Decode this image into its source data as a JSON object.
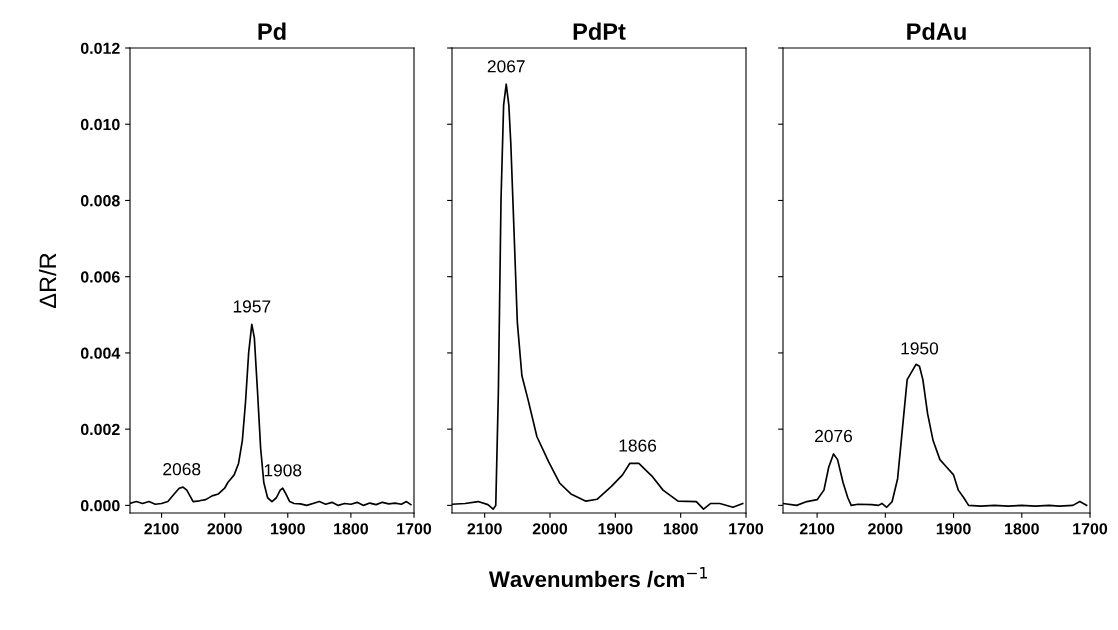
{
  "chart_data": [
    {
      "type": "line",
      "title": "Pd",
      "ylabel": "ΔR/R",
      "xlim": [
        2150,
        1700
      ],
      "xticks": [
        2100,
        2000,
        1900,
        1800,
        1700
      ],
      "ylim": [
        -0.0002,
        0.012
      ],
      "yticks": [
        {
          "value": 0,
          "label": "0.000"
        },
        {
          "value": 0.002,
          "label": "0.002"
        },
        {
          "value": 0.004,
          "label": "0.004"
        },
        {
          "value": 0.006,
          "label": "0.006"
        },
        {
          "value": 0.008,
          "label": "0.008"
        },
        {
          "value": 0.01,
          "label": "0.010"
        },
        {
          "value": 0.012,
          "label": "0.012"
        }
      ],
      "series": [
        {
          "color": "#000000",
          "x": [
            2150,
            2140,
            2130,
            2120,
            2110,
            2100,
            2090,
            2080,
            2072,
            2066,
            2060,
            2050,
            2040,
            2030,
            2020,
            2010,
            2000,
            1995,
            1990,
            1985,
            1978,
            1972,
            1967,
            1962,
            1957,
            1953,
            1948,
            1943,
            1938,
            1932,
            1925,
            1918,
            1912,
            1908,
            1903,
            1897,
            1890,
            1880,
            1870,
            1860,
            1850,
            1840,
            1830,
            1820,
            1810,
            1800,
            1790,
            1780,
            1770,
            1760,
            1750,
            1740,
            1730,
            1720,
            1712,
            1705
          ],
          "values": [
            5e-05,
            0.0001,
            5e-05,
            0.0001,
            3e-05,
            5e-05,
            0.0001,
            0.0003,
            0.00045,
            0.00048,
            0.0004,
            0.0001,
            0.00012,
            0.00015,
            0.00025,
            0.0003,
            0.00045,
            0.0006,
            0.0007,
            0.0008,
            0.0011,
            0.0017,
            0.0027,
            0.004,
            0.00475,
            0.0044,
            0.003,
            0.0015,
            0.0006,
            0.0002,
            0.0001,
            0.0002,
            0.0004,
            0.00045,
            0.0003,
            0.0001,
            5e-05,
            4e-05,
            0.0,
            5e-05,
            0.0001,
            3e-05,
            8e-05,
            0.0,
            5e-05,
            3e-05,
            8e-05,
            0.0,
            6e-05,
            2e-05,
            8e-05,
            4e-05,
            6e-05,
            3e-05,
            0.0001,
            2e-05
          ]
        }
      ],
      "annotations": [
        {
          "text": "2068",
          "x": 2068,
          "y": 0.00048
        },
        {
          "text": "1957",
          "x": 1957,
          "y": 0.00475
        },
        {
          "text": "1908",
          "x": 1908,
          "y": 0.00045
        }
      ]
    },
    {
      "type": "line",
      "title": "PdPt",
      "xlabel": "Wavenumbers /cm$^{−1}$",
      "xlim": [
        2150,
        1700
      ],
      "xticks": [
        2100,
        2000,
        1900,
        1800,
        1700
      ],
      "ylim": [
        -0.0002,
        0.012
      ],
      "yticks": [
        {
          "value": 0,
          "label": null
        },
        {
          "value": 0.002,
          "label": null
        },
        {
          "value": 0.004,
          "label": null
        },
        {
          "value": 0.006,
          "label": null
        },
        {
          "value": 0.008,
          "label": null
        },
        {
          "value": 0.01,
          "label": null
        },
        {
          "value": 0.012,
          "label": null
        }
      ],
      "tick_labels": "x",
      "series": [
        {
          "color": "#000000",
          "x": [
            2150,
            2130,
            2110,
            2095,
            2087,
            2083,
            2079,
            2075,
            2071,
            2067,
            2063,
            2060,
            2057,
            2050,
            2043,
            2034,
            2020,
            2002,
            1985,
            1968,
            1945,
            1928,
            1906,
            1889,
            1878,
            1864,
            1844,
            1827,
            1804,
            1776,
            1765,
            1754,
            1740,
            1720,
            1705
          ],
          "values": [
            3e-05,
            5e-05,
            0.0001,
            2e-05,
            -0.0001,
            0.0,
            0.003,
            0.008,
            0.0105,
            0.01105,
            0.0105,
            0.0095,
            0.0081,
            0.0048,
            0.0034,
            0.0028,
            0.0018,
            0.00114,
            0.00058,
            0.0003,
            0.00011,
            0.00016,
            0.0005,
            0.0008,
            0.0011,
            0.0011,
            0.00077,
            0.0004,
            0.00011,
            0.0001,
            -0.0001,
            5e-05,
            5e-05,
            -5e-05,
            5e-05
          ]
        }
      ],
      "annotations": [
        {
          "text": "2067",
          "x": 2067,
          "y": 0.01105
        },
        {
          "text": "1866",
          "x": 1866,
          "y": 0.0011
        }
      ]
    },
    {
      "type": "line",
      "title": "PdAu",
      "xlim": [
        2150,
        1700
      ],
      "xticks": [
        2100,
        2000,
        1900,
        1800,
        1700
      ],
      "ylim": [
        -0.0002,
        0.012
      ],
      "yticks": [
        {
          "value": 0,
          "label": null
        },
        {
          "value": 0.002,
          "label": null
        },
        {
          "value": 0.004,
          "label": null
        },
        {
          "value": 0.006,
          "label": null
        },
        {
          "value": 0.008,
          "label": null
        },
        {
          "value": 0.01,
          "label": null
        },
        {
          "value": 0.012,
          "label": null
        }
      ],
      "tick_labels": "x",
      "series": [
        {
          "color": "#000000",
          "x": [
            2150,
            2130,
            2115,
            2100,
            2090,
            2083,
            2076,
            2070,
            2062,
            2055,
            2050,
            2040,
            2020,
            2010,
            2005,
            1998,
            1990,
            1982,
            1975,
            1968,
            1955,
            1950,
            1945,
            1938,
            1930,
            1920,
            1910,
            1900,
            1893,
            1885,
            1878,
            1860,
            1840,
            1820,
            1800,
            1780,
            1760,
            1745,
            1725,
            1715,
            1705
          ],
          "values": [
            5e-05,
            0.0,
            0.0001,
            0.00015,
            0.0004,
            0.001,
            0.00135,
            0.0012,
            0.0006,
            0.0002,
            0.0,
            3e-05,
            2e-05,
            0.0,
            5e-05,
            -5e-05,
            0.0001,
            0.0007,
            0.002,
            0.0033,
            0.0037,
            0.00365,
            0.0033,
            0.0024,
            0.0017,
            0.0012,
            0.001,
            0.0008,
            0.0004,
            0.0002,
            0.0,
            -2e-05,
            0.0,
            -2e-05,
            0.0,
            -2e-05,
            0.0,
            -2e-05,
            0.0,
            0.0001,
            0.0
          ]
        }
      ],
      "annotations": [
        {
          "text": "2076",
          "x": 2076,
          "y": 0.00135
        },
        {
          "text": "1950",
          "x": 1950,
          "y": 0.00365
        }
      ]
    }
  ]
}
